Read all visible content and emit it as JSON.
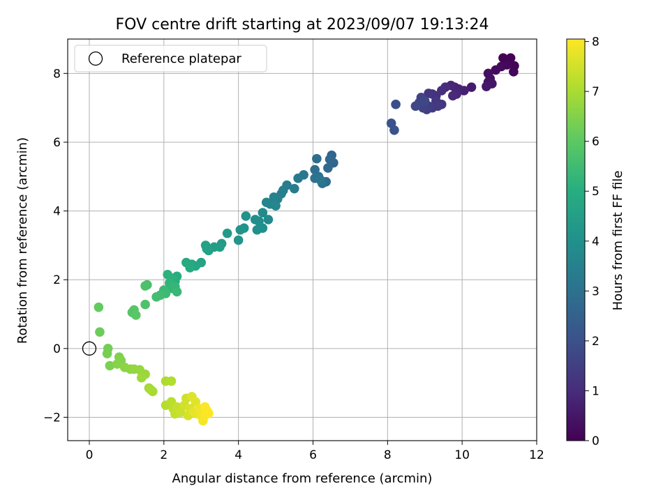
{
  "chart_data": {
    "type": "scatter",
    "title": "FOV centre drift starting at 2023/09/07 19:13:24",
    "xlabel": "Angular distance from reference (arcmin)",
    "ylabel": "Rotation from reference (arcmin)",
    "xlim": [
      -0.58,
      12
    ],
    "ylim": [
      -2.68,
      9.0
    ],
    "xticks": [
      0,
      2,
      4,
      6,
      8,
      10,
      12
    ],
    "xtick_labels": [
      "0",
      "2",
      "4",
      "6",
      "8",
      "10",
      "12"
    ],
    "yticks": [
      -2,
      0,
      2,
      4,
      6,
      8
    ],
    "ytick_labels": [
      "−2",
      "0",
      "2",
      "4",
      "6",
      "8"
    ],
    "grid": true,
    "legend": {
      "placement": "upper-left",
      "entries": [
        {
          "label": "Reference platepar",
          "marker": "open-circle"
        }
      ]
    },
    "reference_point": {
      "x": 0,
      "y": 0,
      "name": "Reference platepar"
    },
    "colorbar": {
      "label": "Hours from first FF file",
      "colormap": "viridis",
      "range": [
        0,
        8.05
      ],
      "ticks": [
        0,
        1,
        2,
        3,
        4,
        5,
        6,
        7,
        8
      ],
      "tick_labels": [
        "0",
        "1",
        "2",
        "3",
        "4",
        "5",
        "6",
        "7",
        "8"
      ]
    },
    "points": [
      {
        "x": 11.1,
        "y": 8.45,
        "c": 0.02
      },
      {
        "x": 11.3,
        "y": 8.45,
        "c": 0.05
      },
      {
        "x": 11.4,
        "y": 8.22,
        "c": 0.08
      },
      {
        "x": 11.38,
        "y": 8.05,
        "c": 0.12
      },
      {
        "x": 11.2,
        "y": 8.25,
        "c": 0.15
      },
      {
        "x": 11.05,
        "y": 8.2,
        "c": 0.2
      },
      {
        "x": 10.9,
        "y": 8.1,
        "c": 0.25
      },
      {
        "x": 10.7,
        "y": 8.0,
        "c": 0.3
      },
      {
        "x": 10.75,
        "y": 7.85,
        "c": 0.35
      },
      {
        "x": 10.7,
        "y": 7.75,
        "c": 0.4
      },
      {
        "x": 10.8,
        "y": 7.7,
        "c": 0.45
      },
      {
        "x": 10.65,
        "y": 7.62,
        "c": 0.5
      },
      {
        "x": 10.25,
        "y": 7.6,
        "c": 0.6
      },
      {
        "x": 10.05,
        "y": 7.5,
        "c": 0.7
      },
      {
        "x": 9.9,
        "y": 7.55,
        "c": 0.75
      },
      {
        "x": 9.8,
        "y": 7.6,
        "c": 0.8
      },
      {
        "x": 9.7,
        "y": 7.65,
        "c": 0.85
      },
      {
        "x": 9.85,
        "y": 7.4,
        "c": 0.9
      },
      {
        "x": 9.75,
        "y": 7.35,
        "c": 0.95
      },
      {
        "x": 9.55,
        "y": 7.6,
        "c": 1.0
      },
      {
        "x": 9.45,
        "y": 7.5,
        "c": 1.05
      },
      {
        "x": 9.3,
        "y": 7.35,
        "c": 1.1
      },
      {
        "x": 9.2,
        "y": 7.4,
        "c": 1.15
      },
      {
        "x": 9.1,
        "y": 7.42,
        "c": 1.2
      },
      {
        "x": 9.3,
        "y": 7.2,
        "c": 1.25
      },
      {
        "x": 9.45,
        "y": 7.1,
        "c": 1.3
      },
      {
        "x": 9.35,
        "y": 7.05,
        "c": 1.35
      },
      {
        "x": 9.2,
        "y": 7.0,
        "c": 1.4
      },
      {
        "x": 9.1,
        "y": 7.05,
        "c": 1.45
      },
      {
        "x": 9.05,
        "y": 6.95,
        "c": 1.5
      },
      {
        "x": 8.95,
        "y": 7.0,
        "c": 1.55
      },
      {
        "x": 8.9,
        "y": 7.3,
        "c": 1.6
      },
      {
        "x": 8.85,
        "y": 7.15,
        "c": 1.65
      },
      {
        "x": 8.75,
        "y": 7.05,
        "c": 1.7
      },
      {
        "x": 9.0,
        "y": 7.2,
        "c": 1.75
      },
      {
        "x": 8.22,
        "y": 7.1,
        "c": 1.9
      },
      {
        "x": 8.1,
        "y": 6.55,
        "c": 2.0
      },
      {
        "x": 8.18,
        "y": 6.35,
        "c": 2.05
      },
      {
        "x": 6.5,
        "y": 5.62,
        "c": 2.6
      },
      {
        "x": 6.55,
        "y": 5.4,
        "c": 2.65
      },
      {
        "x": 6.45,
        "y": 5.5,
        "c": 2.7
      },
      {
        "x": 6.4,
        "y": 5.25,
        "c": 2.75
      },
      {
        "x": 6.35,
        "y": 4.85,
        "c": 2.8
      },
      {
        "x": 6.1,
        "y": 5.52,
        "c": 2.85
      },
      {
        "x": 6.05,
        "y": 5.2,
        "c": 2.9
      },
      {
        "x": 6.15,
        "y": 5.0,
        "c": 2.95
      },
      {
        "x": 6.25,
        "y": 4.8,
        "c": 3.0
      },
      {
        "x": 6.05,
        "y": 4.95,
        "c": 3.05
      },
      {
        "x": 6.2,
        "y": 4.9,
        "c": 3.1
      },
      {
        "x": 5.75,
        "y": 5.05,
        "c": 3.2
      },
      {
        "x": 5.6,
        "y": 4.95,
        "c": 3.25
      },
      {
        "x": 5.5,
        "y": 4.65,
        "c": 3.3
      },
      {
        "x": 5.3,
        "y": 4.75,
        "c": 3.35
      },
      {
        "x": 5.2,
        "y": 4.6,
        "c": 3.4
      },
      {
        "x": 5.15,
        "y": 4.5,
        "c": 3.45
      },
      {
        "x": 5.05,
        "y": 4.35,
        "c": 3.5
      },
      {
        "x": 4.95,
        "y": 4.4,
        "c": 3.55
      },
      {
        "x": 4.85,
        "y": 4.2,
        "c": 3.6
      },
      {
        "x": 4.75,
        "y": 4.25,
        "c": 3.65
      },
      {
        "x": 5.0,
        "y": 4.15,
        "c": 3.7
      },
      {
        "x": 4.8,
        "y": 3.75,
        "c": 3.75
      },
      {
        "x": 4.65,
        "y": 3.95,
        "c": 3.8
      },
      {
        "x": 4.55,
        "y": 3.7,
        "c": 3.85
      },
      {
        "x": 4.45,
        "y": 3.75,
        "c": 3.9
      },
      {
        "x": 4.5,
        "y": 3.45,
        "c": 3.95
      },
      {
        "x": 4.65,
        "y": 3.5,
        "c": 4.0
      },
      {
        "x": 4.2,
        "y": 3.85,
        "c": 4.05
      },
      {
        "x": 4.15,
        "y": 3.5,
        "c": 4.1
      },
      {
        "x": 4.05,
        "y": 3.45,
        "c": 4.15
      },
      {
        "x": 4.0,
        "y": 3.15,
        "c": 4.2
      },
      {
        "x": 3.7,
        "y": 3.35,
        "c": 4.3
      },
      {
        "x": 3.55,
        "y": 3.05,
        "c": 4.35
      },
      {
        "x": 3.5,
        "y": 2.95,
        "c": 4.4
      },
      {
        "x": 3.35,
        "y": 2.95,
        "c": 4.45
      },
      {
        "x": 3.2,
        "y": 2.85,
        "c": 4.5
      },
      {
        "x": 3.12,
        "y": 3.0,
        "c": 4.55
      },
      {
        "x": 3.15,
        "y": 2.9,
        "c": 4.6
      },
      {
        "x": 3.0,
        "y": 2.5,
        "c": 4.7
      },
      {
        "x": 2.85,
        "y": 2.4,
        "c": 4.75
      },
      {
        "x": 2.75,
        "y": 2.45,
        "c": 4.8
      },
      {
        "x": 2.6,
        "y": 2.5,
        "c": 4.85
      },
      {
        "x": 2.7,
        "y": 2.35,
        "c": 4.9
      },
      {
        "x": 2.35,
        "y": 2.1,
        "c": 5.0
      },
      {
        "x": 2.3,
        "y": 1.95,
        "c": 5.05
      },
      {
        "x": 2.2,
        "y": 2.05,
        "c": 5.1
      },
      {
        "x": 2.1,
        "y": 2.15,
        "c": 5.15
      },
      {
        "x": 2.15,
        "y": 1.9,
        "c": 5.2
      },
      {
        "x": 2.2,
        "y": 1.75,
        "c": 5.25
      },
      {
        "x": 2.3,
        "y": 1.8,
        "c": 5.3
      },
      {
        "x": 2.35,
        "y": 1.65,
        "c": 5.35
      },
      {
        "x": 2.0,
        "y": 1.7,
        "c": 5.4
      },
      {
        "x": 2.05,
        "y": 1.6,
        "c": 5.45
      },
      {
        "x": 1.9,
        "y": 1.55,
        "c": 5.5
      },
      {
        "x": 1.8,
        "y": 1.5,
        "c": 5.55
      },
      {
        "x": 1.55,
        "y": 1.85,
        "c": 5.65
      },
      {
        "x": 1.5,
        "y": 1.82,
        "c": 5.7
      },
      {
        "x": 1.5,
        "y": 1.28,
        "c": 5.75
      },
      {
        "x": 1.15,
        "y": 1.05,
        "c": 5.85
      },
      {
        "x": 1.2,
        "y": 1.12,
        "c": 5.9
      },
      {
        "x": 1.25,
        "y": 0.97,
        "c": 5.95
      },
      {
        "x": 0.25,
        "y": 1.2,
        "c": 6.1
      },
      {
        "x": 0.28,
        "y": 0.48,
        "c": 6.2
      },
      {
        "x": 0.5,
        "y": 0.0,
        "c": 6.3
      },
      {
        "x": 0.48,
        "y": -0.15,
        "c": 6.35
      },
      {
        "x": 0.55,
        "y": -0.5,
        "c": 6.4
      },
      {
        "x": 0.8,
        "y": -0.25,
        "c": 6.45
      },
      {
        "x": 0.85,
        "y": -0.35,
        "c": 6.5
      },
      {
        "x": 0.75,
        "y": -0.45,
        "c": 6.55
      },
      {
        "x": 0.95,
        "y": -0.55,
        "c": 6.6
      },
      {
        "x": 1.1,
        "y": -0.6,
        "c": 6.65
      },
      {
        "x": 1.2,
        "y": -0.6,
        "c": 6.7
      },
      {
        "x": 1.35,
        "y": -0.62,
        "c": 6.75
      },
      {
        "x": 1.5,
        "y": -0.75,
        "c": 6.8
      },
      {
        "x": 1.4,
        "y": -0.85,
        "c": 6.85
      },
      {
        "x": 1.6,
        "y": -1.15,
        "c": 6.9
      },
      {
        "x": 1.7,
        "y": -1.25,
        "c": 6.95
      },
      {
        "x": 1.65,
        "y": -1.2,
        "c": 7.0
      },
      {
        "x": 2.05,
        "y": -0.95,
        "c": 7.05
      },
      {
        "x": 2.2,
        "y": -0.95,
        "c": 7.1
      },
      {
        "x": 2.05,
        "y": -1.65,
        "c": 7.15
      },
      {
        "x": 2.2,
        "y": -1.55,
        "c": 7.2
      },
      {
        "x": 2.25,
        "y": -1.75,
        "c": 7.25
      },
      {
        "x": 2.3,
        "y": -1.9,
        "c": 7.3
      },
      {
        "x": 2.35,
        "y": -1.7,
        "c": 7.35
      },
      {
        "x": 2.45,
        "y": -1.85,
        "c": 7.4
      },
      {
        "x": 2.6,
        "y": -1.45,
        "c": 7.45
      },
      {
        "x": 2.55,
        "y": -1.65,
        "c": 7.5
      },
      {
        "x": 2.65,
        "y": -1.95,
        "c": 7.55
      },
      {
        "x": 2.7,
        "y": -1.75,
        "c": 7.6
      },
      {
        "x": 2.75,
        "y": -1.4,
        "c": 7.65
      },
      {
        "x": 2.85,
        "y": -1.55,
        "c": 7.7
      },
      {
        "x": 2.8,
        "y": -1.85,
        "c": 7.75
      },
      {
        "x": 2.9,
        "y": -1.9,
        "c": 7.8
      },
      {
        "x": 2.95,
        "y": -1.75,
        "c": 7.85
      },
      {
        "x": 3.0,
        "y": -1.95,
        "c": 7.9
      },
      {
        "x": 3.05,
        "y": -2.1,
        "c": 7.95
      },
      {
        "x": 3.1,
        "y": -1.95,
        "c": 8.0
      },
      {
        "x": 3.15,
        "y": -1.8,
        "c": 8.02
      },
      {
        "x": 3.1,
        "y": -1.7,
        "c": 8.03
      },
      {
        "x": 3.2,
        "y": -1.88,
        "c": 8.05
      }
    ]
  }
}
